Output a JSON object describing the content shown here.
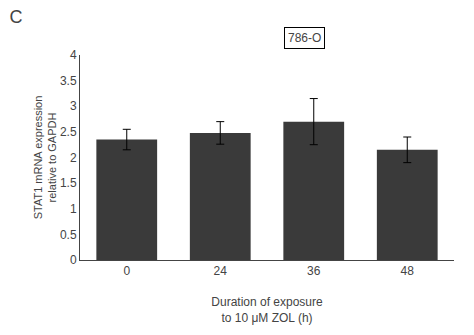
{
  "chart_data": {
    "type": "bar",
    "title": "C",
    "annotations": [
      "786-O"
    ],
    "categories": [
      "0",
      "24",
      "36",
      "48"
    ],
    "values": [
      2.35,
      2.48,
      2.7,
      2.15
    ],
    "errors": [
      0.2,
      0.22,
      0.45,
      0.25
    ],
    "color": "#3a3a3a",
    "xlabel": "Duration of exposure\nto 10 μM ZOL (h)",
    "ylabel": "STAT1 mRNA expression\nrelative to GAPDH",
    "ylim": [
      0,
      4
    ],
    "yticks": [
      0,
      0.5,
      1,
      1.5,
      2,
      2.5,
      3,
      3.5,
      4
    ],
    "grid": false
  }
}
